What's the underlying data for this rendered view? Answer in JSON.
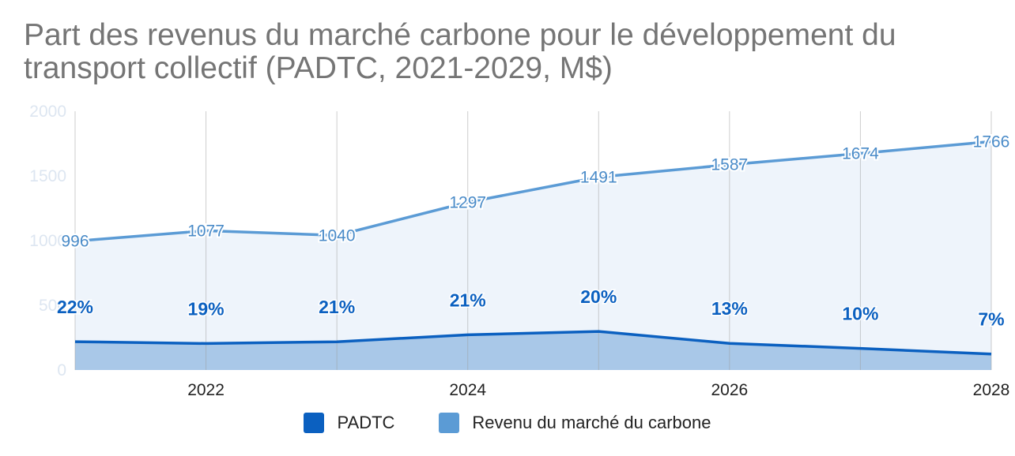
{
  "title_line1": "Part des revenus du marché carbone pour le développement du",
  "title_line2": "transport collectif (PADTC, 2021-2029, M$)",
  "chart_data": {
    "type": "area",
    "title": "Part des revenus du marché carbone pour le développement du transport collectif (PADTC, 2021-2029, M$)",
    "x": [
      2021,
      2022,
      2023,
      2024,
      2025,
      2026,
      2027,
      2028
    ],
    "x_tick_labels": [
      "2022",
      "2024",
      "2026",
      "2028"
    ],
    "x_tick_values": [
      2022,
      2024,
      2026,
      2028
    ],
    "y_tick_labels": [
      "0",
      "500",
      "1000",
      "1500",
      "2000"
    ],
    "y_tick_values": [
      0,
      500,
      1000,
      1500,
      2000
    ],
    "ylim": [
      0,
      2000
    ],
    "xlim": [
      2021,
      2028
    ],
    "series": [
      {
        "name": "Revenu du marché du carbone",
        "color": "#5B9BD5",
        "values": [
          996,
          1077,
          1040,
          1297,
          1491,
          1587,
          1674,
          1766
        ],
        "labels": [
          "996",
          "1077",
          "1040",
          "1297",
          "1491",
          "1587",
          "1674",
          "1766"
        ]
      },
      {
        "name": "PADTC",
        "color": "#0B60C0",
        "values": [
          219,
          205,
          218,
          272,
          298,
          206,
          167,
          124
        ],
        "labels": [
          "22%",
          "19%",
          "21%",
          "21%",
          "20%",
          "13%",
          "10%",
          "7%"
        ]
      }
    ]
  },
  "legend": [
    {
      "label": "PADTC",
      "color": "#0B60C0"
    },
    {
      "label": "Revenu du marché du carbone",
      "color": "#5B9BD5"
    }
  ]
}
